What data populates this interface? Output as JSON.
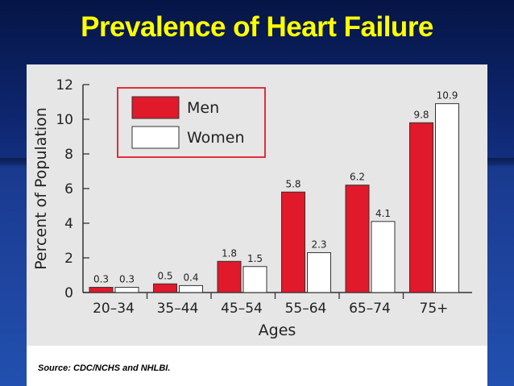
{
  "slide": {
    "title": "Prevalence of Heart Failure",
    "source": "Source: CDC/NCHS and NHLBI."
  },
  "colors": {
    "men": "#e0192b",
    "women": "#ffffff",
    "title": "#ffff00",
    "legend_border": "#e0192b"
  },
  "chart_data": {
    "type": "bar",
    "categories": [
      "20–34",
      "35–44",
      "45–54",
      "55–64",
      "65–74",
      "75+"
    ],
    "series": [
      {
        "name": "Men",
        "values": [
          0.3,
          0.5,
          1.8,
          5.8,
          6.2,
          9.8
        ]
      },
      {
        "name": "Women",
        "values": [
          0.3,
          0.4,
          1.5,
          2.3,
          4.1,
          10.9
        ]
      }
    ],
    "value_labels": [
      [
        "0.3",
        "0.5",
        "1.8",
        "5.8",
        "6.2",
        "9.8"
      ],
      [
        "0.3",
        "0.4",
        "1.5",
        "2.3",
        "4.1",
        "10.9"
      ]
    ],
    "xlabel": "Ages",
    "ylabel": "Percent of Population",
    "ylim": [
      0,
      12
    ],
    "yticks": [
      "0",
      "2",
      "4",
      "6",
      "8",
      "10",
      "12"
    ],
    "legend_position": "top-left",
    "grid": false
  }
}
